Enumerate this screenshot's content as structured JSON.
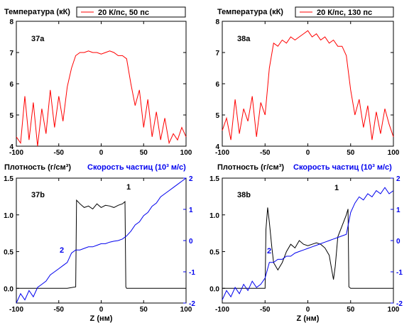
{
  "colors": {
    "temperature": "#ff0000",
    "density": "#000000",
    "velocity": "#0000ee"
  },
  "chart_data": [
    {
      "type": "line",
      "panel_label": "37a",
      "ylabel": "Температура (кК)",
      "legend": {
        "text": "20 К/пс, 50 пс",
        "position": "top-right"
      },
      "xlim": [
        -100,
        100
      ],
      "ylim": [
        4,
        8
      ],
      "xticks": [
        -100,
        -50,
        0,
        50,
        100
      ],
      "yticks": [
        4,
        5,
        6,
        7,
        8
      ],
      "series": [
        {
          "name": "20 К/пс, 50 пс",
          "color": "#ff0000",
          "x": [
            -100,
            -95,
            -90,
            -85,
            -80,
            -75,
            -70,
            -65,
            -60,
            -55,
            -50,
            -45,
            -40,
            -35,
            -30,
            -25,
            -20,
            -15,
            -10,
            -5,
            0,
            5,
            10,
            15,
            20,
            25,
            30,
            35,
            40,
            45,
            50,
            55,
            60,
            65,
            70,
            75,
            80,
            85,
            90,
            95,
            100
          ],
          "y": [
            4.3,
            4.1,
            5.6,
            4.2,
            5.4,
            4.0,
            5.2,
            4.4,
            5.8,
            4.6,
            5.6,
            4.8,
            5.9,
            6.5,
            6.9,
            7.0,
            7.0,
            7.05,
            7.0,
            7.0,
            6.95,
            7.0,
            7.05,
            7.0,
            6.9,
            6.9,
            6.8,
            6.0,
            5.3,
            5.8,
            4.6,
            5.5,
            4.3,
            5.1,
            4.2,
            4.9,
            4.1,
            4.4,
            4.2,
            4.6,
            4.3
          ]
        }
      ]
    },
    {
      "type": "line",
      "panel_label": "38a",
      "ylabel": "Температура (кК)",
      "legend": {
        "text": "20 К/пс, 130 пс",
        "position": "top-right"
      },
      "xlim": [
        -100,
        100
      ],
      "ylim": [
        4,
        8
      ],
      "xticks": [
        -100,
        -50,
        0,
        50,
        100
      ],
      "yticks": [
        4,
        5,
        6,
        7,
        8
      ],
      "series": [
        {
          "name": "20 К/пс, 130 пс",
          "color": "#ff0000",
          "x": [
            -100,
            -95,
            -90,
            -85,
            -80,
            -75,
            -70,
            -65,
            -60,
            -55,
            -50,
            -45,
            -40,
            -35,
            -30,
            -25,
            -20,
            -15,
            -10,
            -5,
            0,
            5,
            10,
            15,
            20,
            25,
            30,
            35,
            40,
            45,
            50,
            55,
            60,
            65,
            70,
            75,
            80,
            85,
            90,
            95,
            100
          ],
          "y": [
            4.5,
            4.9,
            4.2,
            5.5,
            4.4,
            5.2,
            4.8,
            5.6,
            4.3,
            5.4,
            5.0,
            6.5,
            7.3,
            7.2,
            7.4,
            7.3,
            7.5,
            7.4,
            7.5,
            7.6,
            7.7,
            7.5,
            7.6,
            7.4,
            7.5,
            7.3,
            7.4,
            7.2,
            7.2,
            6.9,
            5.8,
            5.0,
            5.5,
            4.6,
            5.3,
            4.2,
            5.1,
            4.4,
            5.2,
            4.7,
            4.3
          ]
        }
      ]
    },
    {
      "type": "line",
      "panel_label": "37b",
      "ylabel": "Плотность (г/см³)",
      "ylabel2": "Скорость частиц (10³ м/с)",
      "xlabel": "Z (нм)",
      "xlim": [
        -100,
        100
      ],
      "ylim": [
        -0.2,
        1.5
      ],
      "y2lim": [
        -2,
        2
      ],
      "xticks": [
        -100,
        -50,
        0,
        50,
        100
      ],
      "yticks": [
        0.0,
        0.5,
        1.0,
        1.5
      ],
      "y2ticks": [
        -2,
        -1,
        0,
        1,
        2
      ],
      "annotations": [
        "1",
        "2"
      ],
      "series": [
        {
          "name": "1",
          "axis": "left",
          "color": "#000000",
          "x": [
            -100,
            -40,
            -30,
            -29,
            -25,
            -20,
            -15,
            -10,
            -5,
            0,
            5,
            10,
            15,
            20,
            25,
            28,
            29,
            30,
            40,
            100
          ],
          "y": [
            0.0,
            0.0,
            0.02,
            1.2,
            1.15,
            1.1,
            1.12,
            1.08,
            1.15,
            1.1,
            1.13,
            1.12,
            1.1,
            1.13,
            1.15,
            1.18,
            0.02,
            0.0,
            0.0,
            0.0
          ]
        },
        {
          "name": "2",
          "axis": "right",
          "color": "#0000ee",
          "x": [
            -100,
            -95,
            -90,
            -85,
            -80,
            -75,
            -70,
            -65,
            -60,
            -55,
            -50,
            -45,
            -40,
            -35,
            -30,
            -25,
            -20,
            -15,
            -10,
            -5,
            0,
            5,
            10,
            15,
            20,
            25,
            30,
            35,
            40,
            45,
            50,
            55,
            60,
            65,
            70,
            75,
            80,
            85,
            90,
            95,
            100
          ],
          "y": [
            -2.0,
            -1.7,
            -1.9,
            -1.6,
            -1.8,
            -1.5,
            -1.4,
            -1.3,
            -1.1,
            -1.0,
            -0.9,
            -0.8,
            -0.7,
            -0.4,
            -0.3,
            -0.3,
            -0.25,
            -0.2,
            -0.2,
            -0.15,
            -0.1,
            -0.1,
            -0.05,
            -0.02,
            0.0,
            0.05,
            0.15,
            0.3,
            0.5,
            0.6,
            0.8,
            0.9,
            1.1,
            1.2,
            1.4,
            1.5,
            1.6,
            1.7,
            1.8,
            1.9,
            2.0
          ]
        }
      ]
    },
    {
      "type": "line",
      "panel_label": "38b",
      "ylabel": "Плотность (г/см³)",
      "ylabel2": "Скорость частиц (10³ м/с)",
      "xlabel": "Z (нм)",
      "xlim": [
        -100,
        100
      ],
      "ylim": [
        -0.2,
        1.5
      ],
      "y2lim": [
        -2,
        2
      ],
      "xticks": [
        -100,
        -50,
        0,
        50,
        100
      ],
      "yticks": [
        0.0,
        0.5,
        1.0,
        1.5
      ],
      "y2ticks": [
        -2,
        -1,
        0,
        1,
        2
      ],
      "annotations": [
        "1",
        "2"
      ],
      "series": [
        {
          "name": "1",
          "axis": "left",
          "color": "#000000",
          "x": [
            -100,
            -50,
            -49,
            -47,
            -45,
            -42,
            -40,
            -35,
            -30,
            -25,
            -20,
            -15,
            -10,
            -5,
            0,
            5,
            10,
            15,
            20,
            25,
            28,
            30,
            32,
            35,
            40,
            45,
            47,
            48,
            50,
            100
          ],
          "y": [
            0.0,
            0.0,
            0.8,
            1.1,
            0.9,
            0.55,
            0.35,
            0.25,
            0.35,
            0.5,
            0.6,
            0.55,
            0.65,
            0.6,
            0.58,
            0.6,
            0.62,
            0.6,
            0.55,
            0.45,
            0.25,
            0.12,
            0.3,
            0.7,
            0.85,
            1.0,
            1.08,
            0.02,
            0.0,
            0.0
          ]
        },
        {
          "name": "2",
          "axis": "right",
          "color": "#0000ee",
          "x": [
            -100,
            -95,
            -90,
            -85,
            -80,
            -75,
            -70,
            -65,
            -60,
            -55,
            -50,
            -45,
            -40,
            -35,
            -30,
            -25,
            -20,
            -15,
            -10,
            -5,
            0,
            5,
            10,
            15,
            20,
            25,
            30,
            35,
            40,
            45,
            50,
            55,
            60,
            65,
            70,
            75,
            80,
            85,
            90,
            95,
            100
          ],
          "y": [
            -1.9,
            -1.6,
            -1.8,
            -1.5,
            -1.7,
            -1.4,
            -1.6,
            -1.3,
            -1.5,
            -1.4,
            -1.2,
            -0.7,
            -0.7,
            -0.6,
            -0.6,
            -0.5,
            -0.5,
            -0.4,
            -0.35,
            -0.3,
            -0.25,
            -0.2,
            -0.15,
            -0.1,
            -0.05,
            0.0,
            0.05,
            0.1,
            0.15,
            0.2,
            0.9,
            1.2,
            1.4,
            1.3,
            1.5,
            1.4,
            1.6,
            1.5,
            1.7,
            1.5,
            1.6
          ]
        }
      ]
    }
  ]
}
